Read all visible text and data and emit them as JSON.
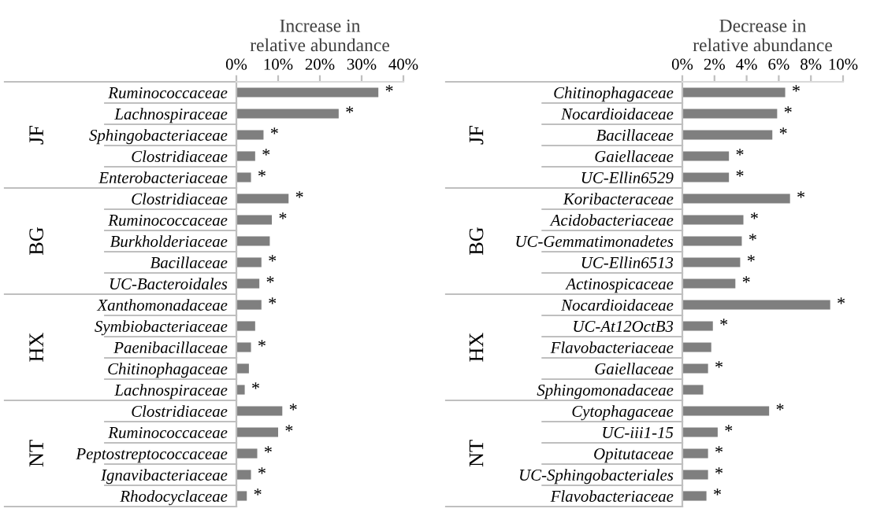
{
  "chart_data": [
    {
      "type": "bar",
      "orientation": "horizontal",
      "title": "Increase in\nrelative abundance",
      "categories": [
        "Ruminococcaceae",
        "Lachnospiraceae",
        "Sphingobacteriaceae",
        "Clostridiaceae",
        "Enterobacteriaceae",
        "Clostridiaceae",
        "Ruminococcaceae",
        "Burkholderiaceae",
        "Bacillaceae",
        "UC-Bacteroidales",
        "Xanthomonadaceae",
        "Symbiobacteriaceae",
        "Paenibacillaceae",
        "Chitinophagaceae",
        "Lachnospiraceae",
        "Clostridiaceae",
        "Ruminococcaceae",
        "Peptostreptococcaceae",
        "Ignavibacteriaceae",
        "Rhodocyclaceae"
      ],
      "values": [
        34,
        24.5,
        6.5,
        4.5,
        3.5,
        12.5,
        8.5,
        8,
        6,
        5.5,
        6,
        4.5,
        3.5,
        3,
        2,
        11,
        10,
        5,
        3.5,
        2.5
      ],
      "value_labels": [
        "*",
        "*",
        "*",
        "*",
        "*",
        "*",
        "*",
        null,
        "*",
        "*",
        "*",
        null,
        "*",
        null,
        "*",
        "*",
        "*",
        "*",
        "*",
        "*"
      ],
      "color": "#7f7f7f",
      "xlim": [
        0,
        40
      ],
      "xticks": [
        {
          "value": 0,
          "label": "0%"
        },
        {
          "value": 10,
          "label": "10%"
        },
        {
          "value": 20,
          "label": "20%"
        },
        {
          "value": 30,
          "label": "30%"
        },
        {
          "value": 40,
          "label": "40%"
        }
      ],
      "annotations": [
        "JF",
        "BG",
        "HX",
        "NT"
      ],
      "grid": false,
      "legend": false
    },
    {
      "type": "bar",
      "orientation": "horizontal",
      "title": "Decrease in\nrelative abundance",
      "categories": [
        "Chitinophagaceae",
        "Nocardioidaceae",
        "Bacillaceae",
        "Gaiellaceae",
        "UC-Ellin6529",
        "Koribacteraceae",
        "Acidobacteriaceae",
        "UC-Gemmatimonadetes",
        "UC-Ellin6513",
        "Actinospicaceae",
        "Nocardioidaceae",
        "UC-At12OctB3",
        "Flavobacteriaceae",
        "Gaiellaceae",
        "Sphingomonadaceae",
        "Cytophagaceae",
        "UC-iii1-15",
        "Opitutaceae",
        "UC-Sphingobacteriales",
        "Flavobacteriaceae"
      ],
      "values": [
        6.4,
        5.9,
        5.6,
        2.9,
        2.9,
        6.7,
        3.8,
        3.7,
        3.6,
        3.3,
        9.2,
        1.9,
        1.8,
        1.6,
        1.3,
        5.4,
        2.2,
        1.6,
        1.6,
        1.5
      ],
      "value_labels": [
        "*",
        "*",
        "*",
        "*",
        "*",
        "*",
        "*",
        "*",
        "*",
        "*",
        "*",
        "*",
        null,
        "*",
        null,
        "*",
        "*",
        "*",
        "*",
        "*"
      ],
      "color": "#7f7f7f",
      "xlim": [
        0,
        10
      ],
      "xticks": [
        {
          "value": 0,
          "label": "0%"
        },
        {
          "value": 2,
          "label": "2%"
        },
        {
          "value": 4,
          "label": "4%"
        },
        {
          "value": 6,
          "label": "6%"
        },
        {
          "value": 8,
          "label": "8%"
        },
        {
          "value": 10,
          "label": "10%"
        }
      ],
      "annotations": [
        "JF",
        "BG",
        "HX",
        "NT"
      ],
      "grid": false,
      "legend": false
    }
  ]
}
